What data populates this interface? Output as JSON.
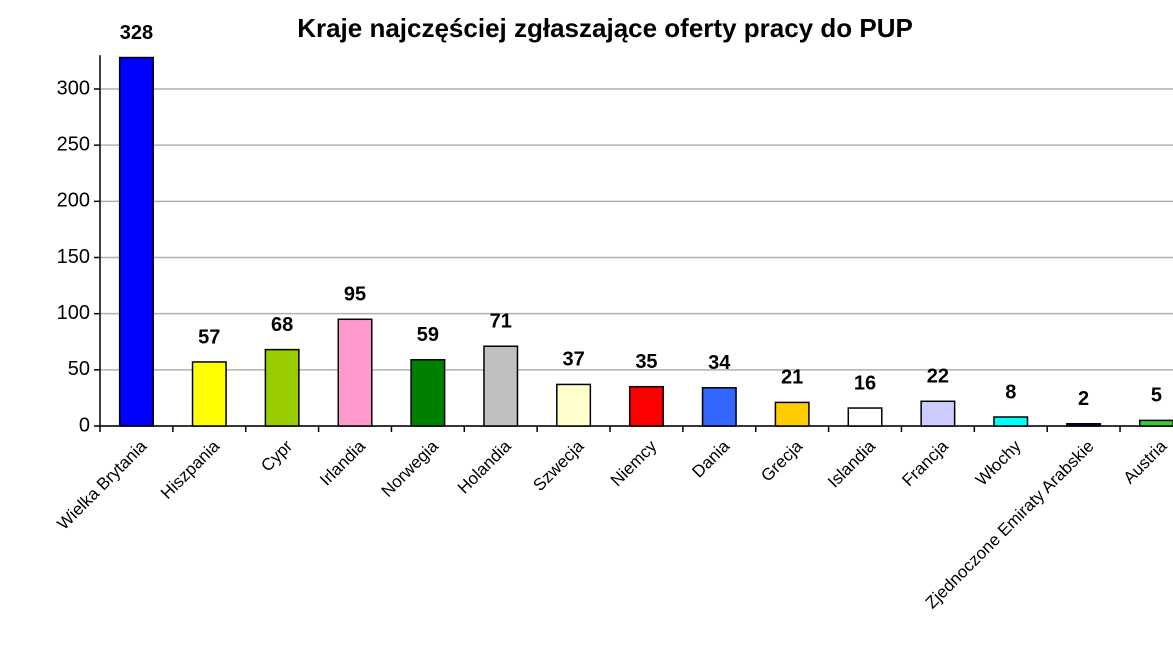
{
  "chart_data": {
    "type": "bar",
    "title": "Kraje najczęściej zgłaszające oferty pracy do PUP",
    "categories": [
      "Wielka Brytania",
      "Hiszpania",
      "Cypr",
      "Irlandia",
      "Norwegia",
      "Holandia",
      "Szwecja",
      "Niemcy",
      "Dania",
      "Grecja",
      "Islandia",
      "Francja",
      "Włochy",
      "Zjednoczone Emiraty Arabskie",
      "Austria"
    ],
    "values": [
      328,
      57,
      68,
      95,
      59,
      71,
      37,
      35,
      34,
      21,
      16,
      22,
      8,
      2,
      5
    ],
    "colors": [
      "#0000ff",
      "#ffff00",
      "#99cc00",
      "#ff99cc",
      "#008000",
      "#c0c0c0",
      "#ffffcc",
      "#ff0000",
      "#3366ff",
      "#ffcc00",
      "#ffffff",
      "#ccccff",
      "#00ffff",
      "#000080",
      "#33cc33"
    ],
    "ylim": [
      0,
      330
    ],
    "yticks": [
      0,
      50,
      100,
      150,
      200,
      250,
      300
    ],
    "grid": true
  }
}
